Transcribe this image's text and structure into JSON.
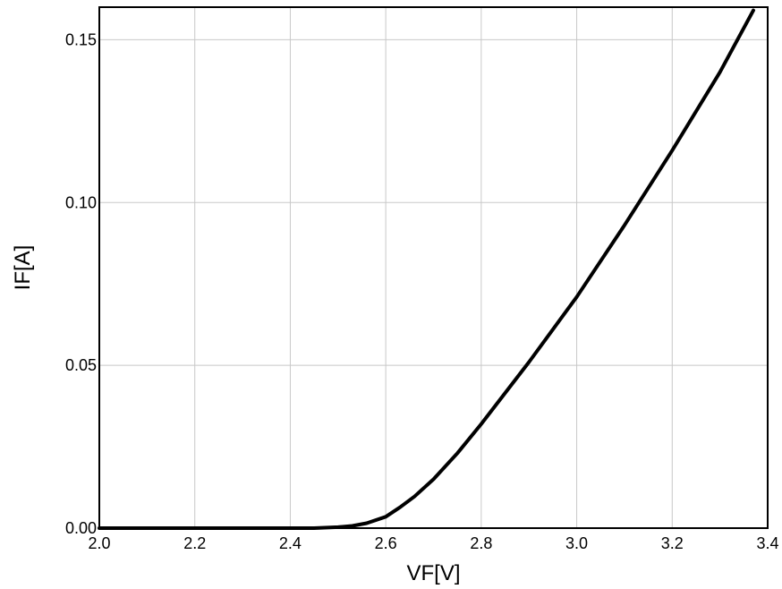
{
  "chart_data": {
    "type": "line",
    "title": "",
    "xlabel": "VF[V]",
    "ylabel": "IF[A]",
    "xlim": [
      2.0,
      3.4
    ],
    "ylim": [
      0.0,
      0.16
    ],
    "x_ticks": [
      "2.0",
      "2.2",
      "2.4",
      "2.6",
      "2.8",
      "3.0",
      "3.2",
      "3.4"
    ],
    "y_ticks": [
      "0.00",
      "0.05",
      "0.10",
      "0.15"
    ],
    "x_tick_values": [
      2.0,
      2.2,
      2.4,
      2.6,
      2.8,
      3.0,
      3.2,
      3.4
    ],
    "y_tick_values": [
      0.0,
      0.05,
      0.1,
      0.15
    ],
    "grid": true,
    "legend": "none",
    "series": [
      {
        "color": "#000000",
        "x": [
          2.0,
          2.1,
          2.2,
          2.3,
          2.4,
          2.45,
          2.5,
          2.53,
          2.56,
          2.6,
          2.63,
          2.66,
          2.7,
          2.75,
          2.8,
          2.9,
          3.0,
          3.1,
          3.2,
          3.3,
          3.37
        ],
        "y": [
          0.0,
          0.0,
          0.0,
          0.0,
          0.0,
          0.0,
          0.0003,
          0.0007,
          0.0015,
          0.0035,
          0.0064,
          0.0097,
          0.015,
          0.023,
          0.032,
          0.051,
          0.071,
          0.093,
          0.116,
          0.14,
          0.159
        ]
      }
    ]
  }
}
